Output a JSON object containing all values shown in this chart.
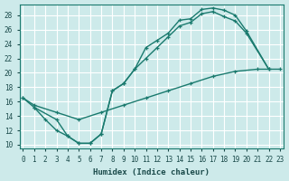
{
  "background_color": "#cdeaea",
  "grid_color": "#ffffff",
  "line_color": "#1a7a6e",
  "xlabel": "Humidex (Indice chaleur)",
  "xlim": [
    -0.3,
    23.3
  ],
  "ylim": [
    9.5,
    29.5
  ],
  "xticks": [
    0,
    1,
    2,
    3,
    4,
    5,
    6,
    7,
    8,
    9,
    10,
    11,
    12,
    13,
    14,
    15,
    16,
    17,
    18,
    19,
    20,
    21,
    22,
    23
  ],
  "yticks": [
    10,
    12,
    14,
    16,
    18,
    20,
    22,
    24,
    26,
    28
  ],
  "line1_x": [
    0,
    1,
    2,
    3,
    4,
    5,
    6,
    7,
    8,
    9,
    10,
    11,
    12,
    13,
    14,
    15,
    16,
    17,
    18,
    19,
    20,
    22
  ],
  "line1_y": [
    16.5,
    15.2,
    13.5,
    12.0,
    11.2,
    10.2,
    10.2,
    11.5,
    17.5,
    18.5,
    20.5,
    23.5,
    24.5,
    25.5,
    27.3,
    27.5,
    28.8,
    29.0,
    28.7,
    28.0,
    25.8,
    20.5
  ],
  "line2_x": [
    0,
    1,
    3,
    5,
    7,
    9,
    11,
    13,
    15,
    17,
    19,
    21,
    23
  ],
  "line2_y": [
    16.5,
    15.5,
    14.5,
    13.5,
    14.5,
    15.5,
    16.5,
    17.5,
    18.5,
    19.5,
    20.2,
    20.5,
    20.5
  ],
  "line3_x": [
    1,
    3,
    4,
    5,
    6,
    7,
    8,
    9,
    10,
    11,
    12,
    13,
    14,
    15,
    16,
    17,
    18,
    19,
    20,
    22
  ],
  "line3_y": [
    15.2,
    13.5,
    11.2,
    10.2,
    10.2,
    11.5,
    17.5,
    18.5,
    20.5,
    22.0,
    23.5,
    25.0,
    26.5,
    27.0,
    28.2,
    28.5,
    27.8,
    27.2,
    25.5,
    20.5
  ]
}
